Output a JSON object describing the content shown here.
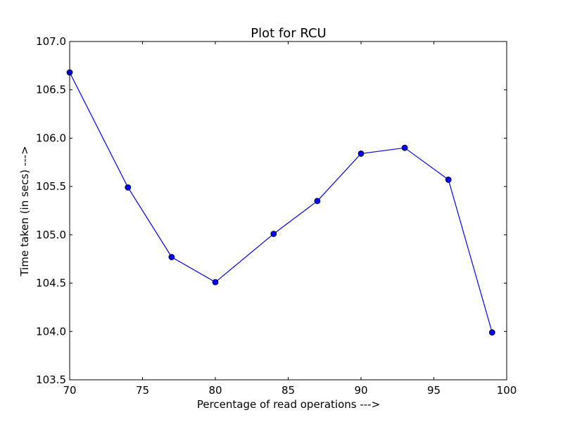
{
  "chart_data": {
    "type": "line",
    "title": "Plot for RCU",
    "xlabel": "Percentage of read operations --->",
    "ylabel": "Time taken (in secs) --->",
    "xlim": [
      70,
      100
    ],
    "ylim": [
      103.5,
      107.0
    ],
    "xticks": [
      "70",
      "75",
      "80",
      "85",
      "90",
      "95",
      "100"
    ],
    "yticks": [
      "103.5",
      "104.0",
      "104.5",
      "105.0",
      "105.5",
      "106.0",
      "106.5",
      "107.0"
    ],
    "grid": false,
    "series": [
      {
        "color": "#0000ff",
        "marker": "circle",
        "x": [
          70,
          74,
          77,
          80,
          84,
          87,
          90,
          93,
          96,
          99
        ],
        "y": [
          106.68,
          105.49,
          104.77,
          104.51,
          105.01,
          105.35,
          105.84,
          105.9,
          105.57,
          103.99
        ]
      }
    ]
  }
}
